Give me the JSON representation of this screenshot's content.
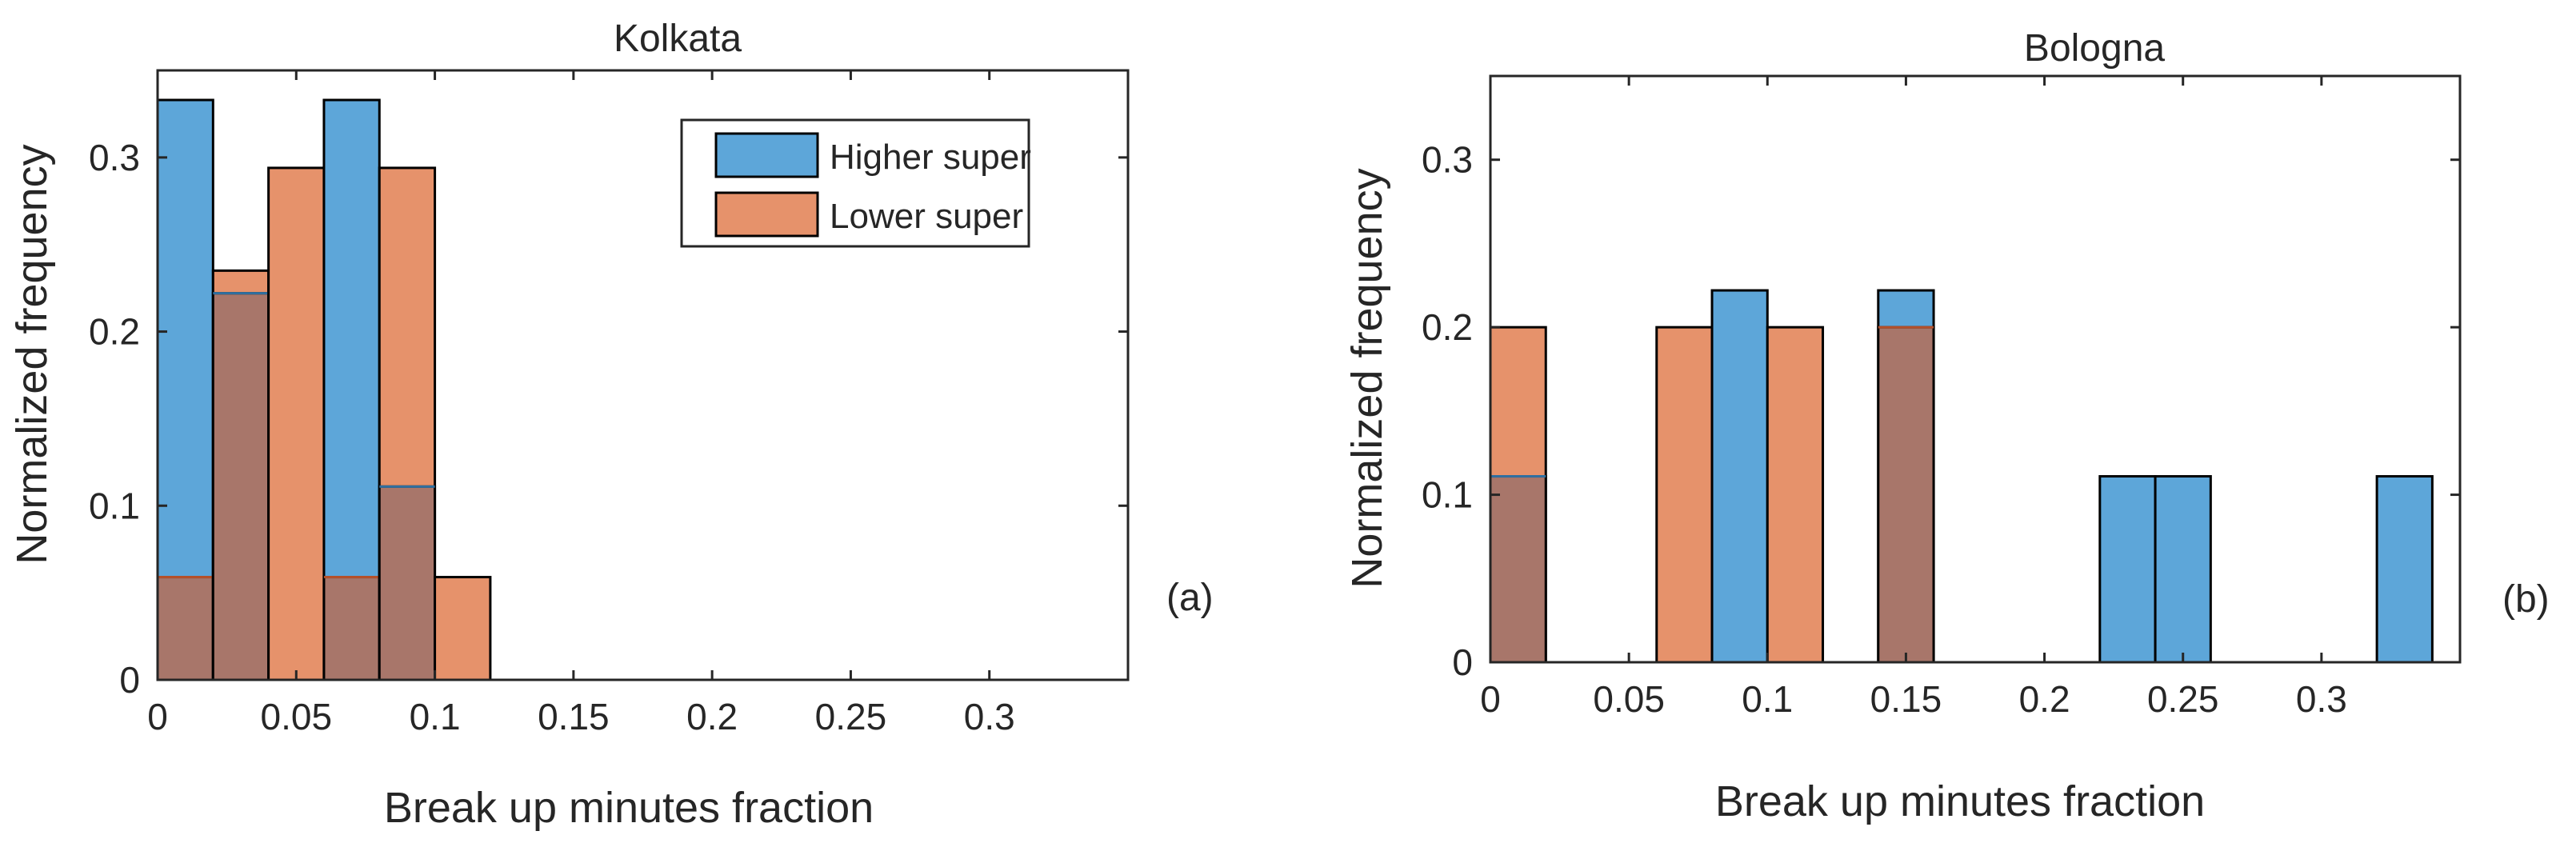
{
  "colors": {
    "higher": "#5da6d9",
    "lower": "#e6926b",
    "overlap": "#a8766a",
    "axis": "#262626",
    "edge": "#000000"
  },
  "chart_data": [
    {
      "type": "bar",
      "title": "Kolkata",
      "panel_label": "(a)",
      "xlabel": "Break up minutes fraction",
      "ylabel": "Normalized frequency",
      "xlim": [
        0,
        0.35
      ],
      "ylim": [
        0,
        0.35
      ],
      "xticks": [
        0,
        0.05,
        0.1,
        0.15,
        0.2,
        0.25,
        0.3
      ],
      "xtick_labels": [
        "0",
        "0.05",
        "0.1",
        "0.15",
        "0.2",
        "0.25",
        "0.3"
      ],
      "yticks": [
        0,
        0.1,
        0.2,
        0.3
      ],
      "ytick_labels": [
        "0",
        "0.1",
        "0.2",
        "0.3"
      ],
      "bin_width": 0.02,
      "bin_edges": [
        0,
        0.02,
        0.04,
        0.06,
        0.08,
        0.1,
        0.12,
        0.14,
        0.16,
        0.18,
        0.2,
        0.22,
        0.24,
        0.26,
        0.28,
        0.3,
        0.32,
        0.34
      ],
      "legend": {
        "position": "top-right",
        "entries": [
          "Higher super",
          "Lower super"
        ]
      },
      "series": [
        {
          "name": "Higher super",
          "values": [
            0.333,
            0.222,
            0,
            0.333,
            0.111,
            0,
            0,
            0,
            0,
            0,
            0,
            0,
            0,
            0,
            0,
            0,
            0
          ]
        },
        {
          "name": "Lower super",
          "values": [
            0.059,
            0.235,
            0.294,
            0.059,
            0.294,
            0.059,
            0,
            0,
            0,
            0,
            0,
            0,
            0,
            0,
            0,
            0,
            0
          ]
        }
      ]
    },
    {
      "type": "bar",
      "title": "Bologna",
      "panel_label": "(b)",
      "xlabel": "Break up minutes fraction",
      "ylabel": "Normalized frequency",
      "xlim": [
        0,
        0.35
      ],
      "ylim": [
        0,
        0.35
      ],
      "xticks": [
        0,
        0.05,
        0.1,
        0.15,
        0.2,
        0.25,
        0.3
      ],
      "xtick_labels": [
        "0",
        "0.05",
        "0.1",
        "0.15",
        "0.2",
        "0.25",
        "0.3"
      ],
      "yticks": [
        0,
        0.1,
        0.2,
        0.3
      ],
      "ytick_labels": [
        "0",
        "0.1",
        "0.2",
        "0.3"
      ],
      "bin_width": 0.02,
      "bin_edges": [
        0,
        0.02,
        0.04,
        0.06,
        0.08,
        0.1,
        0.12,
        0.14,
        0.16,
        0.18,
        0.2,
        0.22,
        0.24,
        0.26,
        0.28,
        0.3,
        0.32,
        0.34
      ],
      "legend": null,
      "series": [
        {
          "name": "Higher super",
          "values": [
            0.111,
            0,
            0,
            0,
            0.222,
            0,
            0,
            0.222,
            0,
            0,
            0,
            0.111,
            0.111,
            0,
            0,
            0,
            0.111
          ]
        },
        {
          "name": "Lower super",
          "values": [
            0.2,
            0,
            0,
            0.2,
            0,
            0.2,
            0,
            0.2,
            0,
            0,
            0,
            0,
            0,
            0,
            0,
            0,
            0
          ]
        }
      ]
    }
  ]
}
